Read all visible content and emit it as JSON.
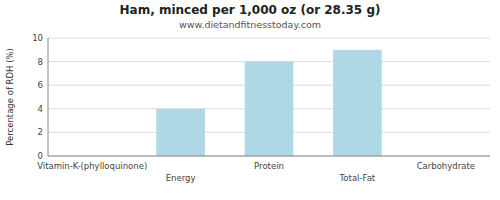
{
  "chart_data": {
    "type": "bar",
    "title": "Ham, minced per 1,000 oz (or 28.35 g)",
    "subtitle": "www.dietandfitnesstoday.com",
    "categories": [
      "Vitamin-K-(phylloquinone)",
      "Energy",
      "Protein",
      "Total-Fat",
      "Carbohydrate"
    ],
    "values": [
      0,
      4.0,
      8.0,
      9.0,
      0
    ],
    "color": "#aed8e6",
    "ylabel": "Percentage of RDH (%)",
    "ylim": [
      0,
      10
    ],
    "yticks": [
      0,
      2,
      4,
      6,
      8,
      10
    ],
    "grid": true
  }
}
